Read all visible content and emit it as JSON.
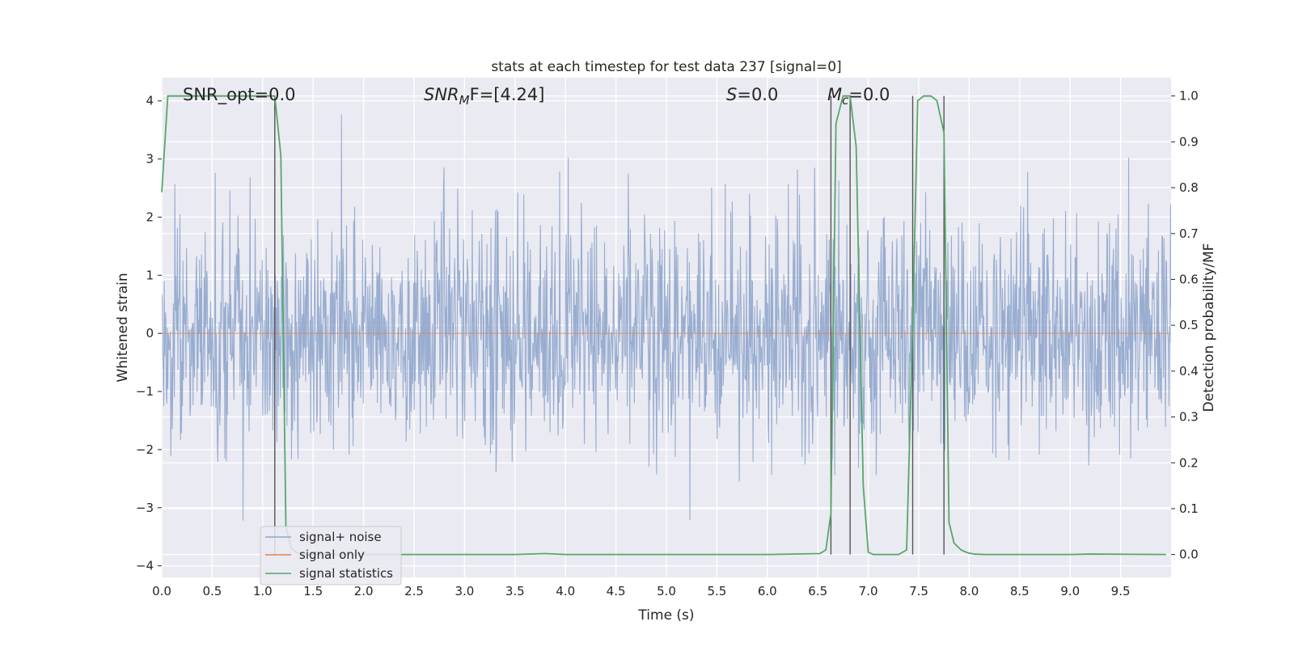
{
  "chart_data": {
    "type": "line",
    "title": "stats at each timestep for test data 237 [signal=0]",
    "xlabel": "Time (s)",
    "ylabel": "Whitened strain",
    "y2label": "Detection probability/MF",
    "xlim": [
      0.0,
      10.0
    ],
    "ylim": [
      -4.2,
      4.4
    ],
    "y2lim": [
      -0.05,
      1.04
    ],
    "x_ticks": [
      0.0,
      0.5,
      1.0,
      1.5,
      2.0,
      2.5,
      3.0,
      3.5,
      4.0,
      4.5,
      5.0,
      5.5,
      6.0,
      6.5,
      7.0,
      7.5,
      8.0,
      8.5,
      9.0,
      9.5
    ],
    "x_tick_labels": [
      "0.0",
      "0.5",
      "1.0",
      "1.5",
      "2.0",
      "2.5",
      "3.0",
      "3.5",
      "4.0",
      "4.5",
      "5.0",
      "5.5",
      "6.0",
      "6.5",
      "7.0",
      "7.5",
      "8.0",
      "8.5",
      "9.0",
      "9.5"
    ],
    "y_ticks": [
      4,
      3,
      2,
      1,
      0,
      -1,
      -2,
      -3,
      -4
    ],
    "y_tick_labels": [
      "4",
      "3",
      "2",
      "1",
      "0",
      "−1",
      "−2",
      "−3",
      "−4"
    ],
    "y2_ticks": [
      1.0,
      0.9,
      0.8,
      0.7,
      0.6,
      0.5,
      0.4,
      0.3,
      0.2,
      0.1,
      0.0
    ],
    "y2_tick_labels": [
      "1.0",
      "0.9",
      "0.8",
      "0.7",
      "0.6",
      "0.5",
      "0.4",
      "0.3",
      "0.2",
      "0.1",
      "0.0"
    ],
    "grid": true,
    "legend_position": "lower-left",
    "annotations": {
      "snr_opt": "SNR_opt=0.0",
      "snr_mf_main": "SNR",
      "snr_mf_sub": "M",
      "snr_mf_rest": "F=[4.24]",
      "s_main": "S",
      "s_rest": "=0.0",
      "mc_main": "M",
      "mc_sub": "c",
      "mc_rest": "=0.0"
    },
    "vertical_markers_x": [
      1.12,
      6.63,
      6.82,
      7.44,
      7.75
    ],
    "series": [
      {
        "name": "signal+ noise",
        "color": "#8fa6cc",
        "noise_std": 1.0,
        "max_abs": 4.0,
        "samples": 2000
      },
      {
        "name": "signal only",
        "color": "#dd8452",
        "x": [
          0.0,
          10.0
        ],
        "y": [
          0.0,
          0.0
        ]
      },
      {
        "name": "signal statistics",
        "color": "#55a868",
        "axis": "right",
        "x": [
          0.0,
          0.06,
          0.1,
          0.2,
          0.5,
          0.8,
          1.0,
          1.12,
          1.18,
          1.23,
          1.28,
          1.33,
          1.38,
          1.45,
          2.0,
          3.5,
          3.8,
          4.0,
          6.0,
          6.52,
          6.58,
          6.63,
          6.68,
          6.75,
          6.82,
          6.88,
          6.95,
          7.0,
          7.05,
          7.1,
          7.3,
          7.38,
          7.44,
          7.49,
          7.55,
          7.62,
          7.68,
          7.75,
          7.8,
          7.85,
          7.92,
          7.98,
          8.05,
          8.15,
          9.0,
          9.2,
          9.95
        ],
        "y": [
          0.79,
          1.0,
          1.0,
          1.0,
          1.0,
          1.0,
          1.0,
          1.0,
          0.87,
          0.06,
          0.015,
          0.005,
          0.001,
          0.0,
          0.0,
          0.0,
          0.002,
          0.0,
          0.0,
          0.002,
          0.01,
          0.09,
          0.94,
          1.0,
          1.0,
          0.89,
          0.15,
          0.005,
          0.0,
          0.0,
          0.0,
          0.01,
          0.5,
          0.99,
          1.0,
          1.0,
          0.99,
          0.92,
          0.07,
          0.025,
          0.01,
          0.004,
          0.001,
          0.0,
          0.0,
          0.001,
          0.0
        ]
      }
    ]
  }
}
